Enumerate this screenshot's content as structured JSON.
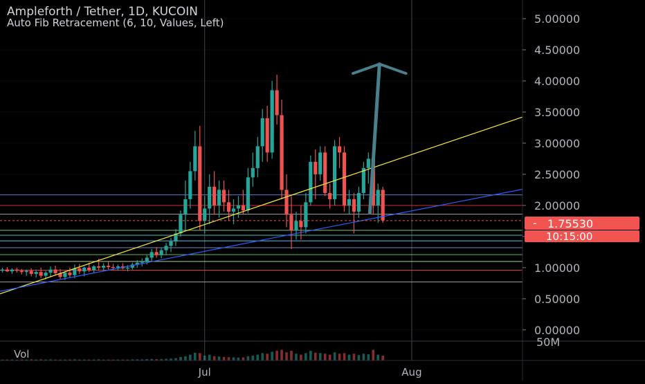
{
  "header": {
    "title": "Ampleforth / Tether, 1D, KUCOIN",
    "indicator": "Auto Fib Retracement (6, 10, Values, Left)"
  },
  "price_badges": {
    "last_price": "1.75530",
    "countdown": "10:15:00",
    "badge_color": "#f05350"
  },
  "volume_panel": {
    "label": "Vol",
    "scale_label": "50M"
  },
  "colors": {
    "up": "#26a69a",
    "down": "#ef5350",
    "trendline_upper": "#ffeb3b",
    "trendline_lower": "#2962ff",
    "arrow": "#4a7f8c",
    "axis_text": "#b2b5be",
    "grid": "#2a2e39"
  },
  "chart_data": {
    "type": "candlestick",
    "title": "Ampleforth / Tether, 1D, KUCOIN",
    "yaxis": {
      "ticks": [
        "5.00000",
        "4.50000",
        "4.00000",
        "3.50000",
        "3.00000",
        "2.50000",
        "2.00000",
        "1.50000",
        "1.00000",
        "0.50000",
        "0.00000"
      ],
      "tick_values": [
        5.0,
        4.5,
        4.0,
        3.5,
        3.0,
        2.5,
        2.0,
        1.5,
        1.0,
        0.5,
        0.0
      ],
      "range": [
        -0.18,
        5.3
      ]
    },
    "xaxis": {
      "ticks": [
        "Jul",
        "Aug"
      ],
      "tick_index": [
        42,
        85
      ],
      "range_index": [
        -0.5,
        108
      ]
    },
    "candles": [
      {
        "o": 0.95,
        "h": 1.0,
        "l": 0.92,
        "c": 0.97
      },
      {
        "o": 0.97,
        "h": 1.01,
        "l": 0.93,
        "c": 0.94
      },
      {
        "o": 0.94,
        "h": 0.99,
        "l": 0.9,
        "c": 0.97
      },
      {
        "o": 0.97,
        "h": 1.0,
        "l": 0.92,
        "c": 0.95
      },
      {
        "o": 0.95,
        "h": 0.98,
        "l": 0.89,
        "c": 0.93
      },
      {
        "o": 0.93,
        "h": 0.97,
        "l": 0.87,
        "c": 0.95
      },
      {
        "o": 0.95,
        "h": 0.99,
        "l": 0.86,
        "c": 0.9
      },
      {
        "o": 0.9,
        "h": 0.97,
        "l": 0.84,
        "c": 0.93
      },
      {
        "o": 0.93,
        "h": 1.0,
        "l": 0.83,
        "c": 0.87
      },
      {
        "o": 0.87,
        "h": 0.95,
        "l": 0.81,
        "c": 0.92
      },
      {
        "o": 0.92,
        "h": 1.02,
        "l": 0.85,
        "c": 0.97
      },
      {
        "o": 0.97,
        "h": 1.03,
        "l": 0.88,
        "c": 0.91
      },
      {
        "o": 0.91,
        "h": 0.98,
        "l": 0.82,
        "c": 0.85
      },
      {
        "o": 0.85,
        "h": 0.95,
        "l": 0.8,
        "c": 0.92
      },
      {
        "o": 0.92,
        "h": 1.0,
        "l": 0.84,
        "c": 0.88
      },
      {
        "o": 0.88,
        "h": 1.05,
        "l": 0.83,
        "c": 0.99
      },
      {
        "o": 0.99,
        "h": 1.06,
        "l": 0.9,
        "c": 0.94
      },
      {
        "o": 0.94,
        "h": 1.02,
        "l": 0.86,
        "c": 1.0
      },
      {
        "o": 1.0,
        "h": 1.08,
        "l": 0.93,
        "c": 0.96
      },
      {
        "o": 0.96,
        "h": 1.04,
        "l": 0.91,
        "c": 1.02
      },
      {
        "o": 1.02,
        "h": 1.14,
        "l": 0.96,
        "c": 1.0
      },
      {
        "o": 1.0,
        "h": 1.07,
        "l": 0.95,
        "c": 1.03
      },
      {
        "o": 1.03,
        "h": 1.09,
        "l": 0.97,
        "c": 1.01
      },
      {
        "o": 1.01,
        "h": 1.06,
        "l": 0.96,
        "c": 1.0
      },
      {
        "o": 1.0,
        "h": 1.05,
        "l": 0.95,
        "c": 1.02
      },
      {
        "o": 1.02,
        "h": 1.07,
        "l": 0.97,
        "c": 0.99
      },
      {
        "o": 0.99,
        "h": 1.04,
        "l": 0.94,
        "c": 1.0
      },
      {
        "o": 1.0,
        "h": 1.08,
        "l": 0.97,
        "c": 1.05
      },
      {
        "o": 1.05,
        "h": 1.12,
        "l": 1.0,
        "c": 1.08
      },
      {
        "o": 1.08,
        "h": 1.15,
        "l": 1.02,
        "c": 1.1
      },
      {
        "o": 1.1,
        "h": 1.2,
        "l": 1.05,
        "c": 1.16
      },
      {
        "o": 1.16,
        "h": 1.3,
        "l": 1.1,
        "c": 1.25
      },
      {
        "o": 1.25,
        "h": 1.33,
        "l": 1.16,
        "c": 1.2
      },
      {
        "o": 1.2,
        "h": 1.32,
        "l": 1.15,
        "c": 1.28
      },
      {
        "o": 1.28,
        "h": 1.4,
        "l": 1.2,
        "c": 1.35
      },
      {
        "o": 1.35,
        "h": 1.48,
        "l": 1.25,
        "c": 1.42
      },
      {
        "o": 1.42,
        "h": 1.62,
        "l": 1.35,
        "c": 1.55
      },
      {
        "o": 1.55,
        "h": 1.92,
        "l": 1.5,
        "c": 1.85
      },
      {
        "o": 1.85,
        "h": 2.4,
        "l": 1.6,
        "c": 2.1
      },
      {
        "o": 2.1,
        "h": 2.7,
        "l": 1.95,
        "c": 2.55
      },
      {
        "o": 2.55,
        "h": 3.2,
        "l": 2.4,
        "c": 2.95
      },
      {
        "o": 2.95,
        "h": 3.28,
        "l": 1.6,
        "c": 1.75
      },
      {
        "o": 1.75,
        "h": 2.15,
        "l": 1.55,
        "c": 1.95
      },
      {
        "o": 1.95,
        "h": 2.5,
        "l": 1.7,
        "c": 2.3
      },
      {
        "o": 2.3,
        "h": 2.55,
        "l": 1.85,
        "c": 2.0
      },
      {
        "o": 2.0,
        "h": 2.4,
        "l": 1.8,
        "c": 2.25
      },
      {
        "o": 2.25,
        "h": 2.4,
        "l": 1.9,
        "c": 2.05
      },
      {
        "o": 2.05,
        "h": 2.25,
        "l": 1.75,
        "c": 1.9
      },
      {
        "o": 1.9,
        "h": 2.1,
        "l": 1.7,
        "c": 1.95
      },
      {
        "o": 1.95,
        "h": 2.15,
        "l": 1.8,
        "c": 2.0
      },
      {
        "o": 2.0,
        "h": 2.25,
        "l": 1.85,
        "c": 1.92
      },
      {
        "o": 1.92,
        "h": 2.6,
        "l": 1.88,
        "c": 2.45
      },
      {
        "o": 2.45,
        "h": 2.85,
        "l": 2.3,
        "c": 2.6
      },
      {
        "o": 2.6,
        "h": 3.1,
        "l": 2.45,
        "c": 2.95
      },
      {
        "o": 2.95,
        "h": 3.55,
        "l": 2.7,
        "c": 3.4
      },
      {
        "o": 3.4,
        "h": 3.6,
        "l": 2.7,
        "c": 2.85
      },
      {
        "o": 2.85,
        "h": 4.0,
        "l": 2.75,
        "c": 3.85
      },
      {
        "o": 3.85,
        "h": 4.1,
        "l": 3.3,
        "c": 3.45
      },
      {
        "o": 3.45,
        "h": 3.7,
        "l": 2.1,
        "c": 2.25
      },
      {
        "o": 2.25,
        "h": 2.5,
        "l": 1.65,
        "c": 1.85
      },
      {
        "o": 1.85,
        "h": 2.15,
        "l": 1.3,
        "c": 1.6
      },
      {
        "o": 1.6,
        "h": 1.9,
        "l": 1.45,
        "c": 1.75
      },
      {
        "o": 1.75,
        "h": 2.0,
        "l": 1.45,
        "c": 1.65
      },
      {
        "o": 1.65,
        "h": 2.2,
        "l": 1.55,
        "c": 2.05
      },
      {
        "o": 2.05,
        "h": 2.8,
        "l": 2.0,
        "c": 2.7
      },
      {
        "o": 2.7,
        "h": 2.9,
        "l": 2.1,
        "c": 2.5
      },
      {
        "o": 2.5,
        "h": 2.95,
        "l": 2.4,
        "c": 2.85
      },
      {
        "o": 2.85,
        "h": 2.95,
        "l": 2.15,
        "c": 2.2
      },
      {
        "o": 2.2,
        "h": 2.35,
        "l": 1.95,
        "c": 2.1
      },
      {
        "o": 2.1,
        "h": 3.05,
        "l": 2.0,
        "c": 2.95
      },
      {
        "o": 2.95,
        "h": 3.1,
        "l": 2.6,
        "c": 2.85
      },
      {
        "o": 2.85,
        "h": 2.95,
        "l": 1.9,
        "c": 2.0
      },
      {
        "o": 2.0,
        "h": 2.25,
        "l": 1.85,
        "c": 2.1
      },
      {
        "o": 2.1,
        "h": 2.2,
        "l": 1.55,
        "c": 1.9
      },
      {
        "o": 1.9,
        "h": 2.3,
        "l": 1.8,
        "c": 2.2
      },
      {
        "o": 2.2,
        "h": 2.7,
        "l": 2.1,
        "c": 2.6
      },
      {
        "o": 2.6,
        "h": 2.85,
        "l": 2.35,
        "c": 2.75
      },
      {
        "o": 2.75,
        "h": 2.9,
        "l": 1.85,
        "c": 2.0
      },
      {
        "o": 2.0,
        "h": 2.35,
        "l": 1.72,
        "c": 2.25
      },
      {
        "o": 2.25,
        "h": 2.3,
        "l": 1.72,
        "c": 1.76
      }
    ],
    "volume": [
      0.05,
      0.05,
      0.05,
      0.04,
      0.05,
      0.05,
      0.06,
      0.05,
      0.06,
      0.05,
      0.06,
      0.05,
      0.05,
      0.05,
      0.05,
      0.06,
      0.05,
      0.05,
      0.05,
      0.05,
      0.06,
      0.05,
      0.05,
      0.05,
      0.05,
      0.05,
      0.05,
      0.06,
      0.06,
      0.06,
      0.07,
      0.08,
      0.07,
      0.08,
      0.09,
      0.1,
      0.12,
      0.18,
      0.22,
      0.3,
      0.4,
      0.38,
      0.25,
      0.3,
      0.22,
      0.2,
      0.18,
      0.17,
      0.16,
      0.15,
      0.16,
      0.22,
      0.25,
      0.3,
      0.38,
      0.35,
      0.45,
      0.5,
      0.55,
      0.42,
      0.5,
      0.35,
      0.3,
      0.38,
      0.5,
      0.4,
      0.38,
      0.35,
      0.3,
      0.42,
      0.35,
      0.38,
      0.3,
      0.35,
      0.28,
      0.35,
      0.32,
      0.55,
      0.3,
      0.25
    ],
    "fib_levels": [
      {
        "value": 2.17,
        "color": "#5b7bd5"
      },
      {
        "value": 2.0,
        "color": "#d32f2f"
      },
      {
        "value": 1.86,
        "color": "#9e9e9e"
      },
      {
        "value": 1.6,
        "color": "#81c784"
      },
      {
        "value": 1.52,
        "color": "#4db6ac"
      },
      {
        "value": 1.43,
        "color": "#4fc3f7"
      },
      {
        "value": 1.32,
        "color": "#7986cb"
      },
      {
        "value": 1.21,
        "color": "#66bb6a"
      },
      {
        "value": 1.1,
        "color": "#aed581"
      },
      {
        "value": 0.96,
        "color": "#e53935"
      },
      {
        "value": 0.77,
        "color": "#9e9e9e"
      }
    ],
    "current_price": 1.7553,
    "trendlines": [
      {
        "name": "upper",
        "x1": -0.5,
        "y1": 0.58,
        "x2": 108,
        "y2": 3.42
      },
      {
        "name": "lower",
        "x1": -0.5,
        "y1": 0.62,
        "x2": 108,
        "y2": 2.26
      }
    ],
    "projection_arrow": {
      "x_start": 76.3,
      "y_start": 1.88,
      "x_end": 78.3,
      "y_end": 4.27,
      "head_half_width": 5.5,
      "head_drop": 0.15
    },
    "grid": true,
    "legend": "top-left"
  }
}
